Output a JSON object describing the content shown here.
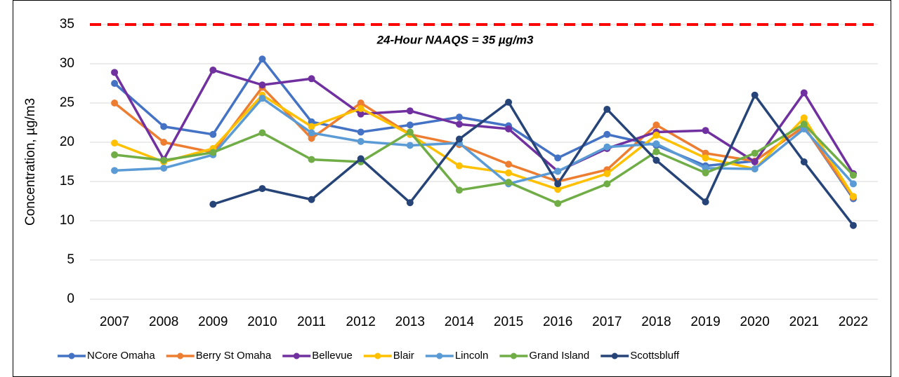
{
  "chart_data": {
    "type": "line",
    "y_label": "Concentration, µg/m3",
    "categories": [
      "2007",
      "2008",
      "2009",
      "2010",
      "2011",
      "2012",
      "2013",
      "2014",
      "2015",
      "2016",
      "2017",
      "2018",
      "2019",
      "2020",
      "2021",
      "2022"
    ],
    "series": [
      {
        "name": "NCore Omaha",
        "color": "#4472c4",
        "values": [
          27.5,
          22,
          21,
          30.6,
          22.6,
          21.3,
          22.2,
          23.2,
          22.1,
          18,
          21,
          19.6,
          17,
          17.6,
          22,
          12.8
        ]
      },
      {
        "name": "Berry St Omaha",
        "color": "#ed7d31",
        "values": [
          25,
          20,
          18.7,
          27,
          20.5,
          25,
          21,
          19.7,
          17.2,
          15,
          16.5,
          22.2,
          18.6,
          17.6,
          22,
          13
        ]
      },
      {
        "name": "Bellevue",
        "color": "#7030a0",
        "values": [
          28.9,
          17.8,
          29.2,
          27.3,
          28.1,
          23.6,
          24,
          22.3,
          21.7,
          16.3,
          19.2,
          21.3,
          21.5,
          17.5,
          26.3,
          16
        ]
      },
      {
        "name": "Blair",
        "color": "#ffc000",
        "values": [
          19.9,
          17.5,
          19.2,
          26,
          22,
          24.3,
          21,
          17,
          16.1,
          14,
          16,
          20.9,
          18,
          16.6,
          23.1,
          13.1
        ]
      },
      {
        "name": "Lincoln",
        "color": "#5b9bd5",
        "values": [
          16.4,
          16.7,
          18.4,
          25.6,
          21.2,
          20.1,
          19.6,
          19.9,
          14.7,
          16.3,
          19.4,
          19.8,
          16.7,
          16.6,
          21.7,
          14.7
        ]
      },
      {
        "name": "Grand Island",
        "color": "#70ad47",
        "values": [
          18.4,
          17.7,
          18.7,
          21.2,
          17.8,
          17.5,
          21.3,
          13.9,
          14.9,
          12.2,
          14.7,
          18.8,
          16.1,
          18.6,
          22.3,
          15.8
        ]
      },
      {
        "name": "Scottsbluff",
        "color": "#264478",
        "values": [
          null,
          null,
          12.1,
          14.1,
          12.7,
          17.9,
          12.3,
          20.4,
          25.1,
          14.7,
          24.2,
          17.7,
          12.4,
          26,
          17.5,
          9.4
        ]
      }
    ],
    "reference_lines": [
      {
        "value": 35,
        "label": "24-Hour NAAQS = 35 µg/m3",
        "color": "#ff0000"
      }
    ],
    "ylim": [
      0,
      35
    ],
    "yticks": [
      0,
      5,
      10,
      15,
      20,
      25,
      30,
      35
    ],
    "grid": true,
    "legend": "bottom"
  }
}
